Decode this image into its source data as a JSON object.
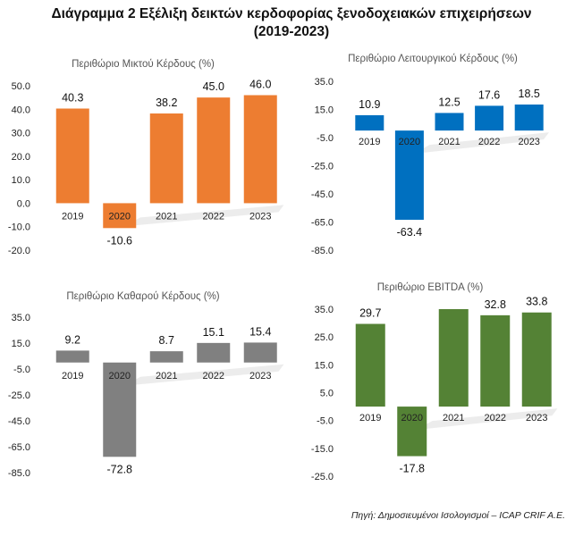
{
  "title_line1": "Διάγραμμα 2 Εξέλιξη δεικτών κερδοφορίας ξενοδοχειακών επιχειρήσεων",
  "title_line2": "(2019-2023)",
  "source": "Πηγή: Δημοσιευμένοι Ισολογισμοί – ICAP CRIF A.E.",
  "chart_data": [
    {
      "type": "bar",
      "title": "Περιθώριο Μικτού Κέρδους (%)",
      "categories": [
        "2019",
        "2020",
        "2021",
        "2022",
        "2023"
      ],
      "values": [
        40.3,
        -10.6,
        38.2,
        45.0,
        46.0
      ],
      "value_labels": [
        "40.3",
        "-10.6",
        "38.2",
        "45.0",
        "46.0"
      ],
      "yticks": [
        50,
        40,
        30,
        20,
        10,
        0,
        -10,
        -20
      ],
      "ytick_labels": [
        "50.0",
        "40.0",
        "30.0",
        "20.0",
        "10.0",
        "0.0",
        "-10.0",
        "-20.0"
      ],
      "ylim": [
        -20,
        50
      ],
      "color": "#ED7D31",
      "xlabel": "",
      "ylabel": ""
    },
    {
      "type": "bar",
      "title": "Περιθώριο Λειτουργικού Κέρδους (%)",
      "categories": [
        "2019",
        "2020",
        "2021",
        "2022",
        "2023"
      ],
      "values": [
        10.9,
        -63.4,
        12.5,
        17.6,
        18.5
      ],
      "value_labels": [
        "10.9",
        "-63.4",
        "12.5",
        "17.6",
        "18.5"
      ],
      "yticks": [
        35,
        15,
        -5,
        -25,
        -45,
        -65,
        -85
      ],
      "ytick_labels": [
        "35.0",
        "15.0",
        "-5.0",
        "-25.0",
        "-45.0",
        "-65.0",
        "-85.0"
      ],
      "ylim": [
        -85,
        35
      ],
      "color": "#0070C0",
      "xlabel": "",
      "ylabel": ""
    },
    {
      "type": "bar",
      "title": "Περιθώριο Καθαρού Κέρδους (%)",
      "categories": [
        "2019",
        "2020",
        "2021",
        "2022",
        "2023"
      ],
      "values": [
        9.2,
        -72.8,
        8.7,
        15.1,
        15.4
      ],
      "value_labels": [
        "9.2",
        "-72.8",
        "8.7",
        "15.1",
        "15.4"
      ],
      "yticks": [
        35,
        15,
        -5,
        -25,
        -45,
        -65,
        -85
      ],
      "ytick_labels": [
        "35.0",
        "15.0",
        "-5.0",
        "-25.0",
        "-45.0",
        "-65.0",
        "-85.0"
      ],
      "ylim": [
        -85,
        35
      ],
      "color": "#808080",
      "xlabel": "",
      "ylabel": ""
    },
    {
      "type": "bar",
      "title": "Περιθώριο EBITDA (%)",
      "categories": [
        "2019",
        "2020",
        "2021",
        "2022",
        "2023"
      ],
      "values": [
        29.7,
        -17.8,
        35.0,
        32.8,
        33.8
      ],
      "value_labels": [
        "29.7",
        "-17.8",
        "",
        "32.8",
        "33.8"
      ],
      "yticks": [
        35,
        25,
        15,
        5,
        -5,
        -15,
        -25
      ],
      "ytick_labels": [
        "35.0",
        "25.0",
        "15.0",
        "5.0",
        "-5.0",
        "-15.0",
        "-25.0"
      ],
      "ylim": [
        -25,
        35
      ],
      "color": "#548235",
      "xlabel": "",
      "ylabel": ""
    }
  ]
}
